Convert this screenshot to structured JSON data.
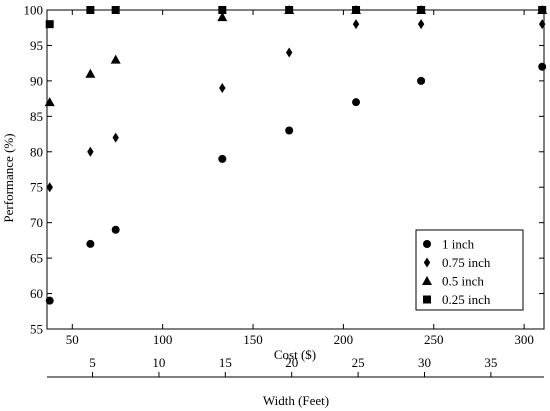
{
  "chart_data": {
    "type": "scatter",
    "xlabel": "Cost ($)",
    "ylabel": "Performance (%)",
    "xlim": [
      36,
      311
    ],
    "ylim": [
      55,
      100
    ],
    "xticks": [
      50,
      100,
      150,
      200,
      250,
      300
    ],
    "yticks": [
      55,
      60,
      65,
      70,
      75,
      80,
      85,
      90,
      95,
      100
    ],
    "secondary_x": {
      "label": "Width (Feet)",
      "lim": [
        1.57,
        39.0
      ],
      "ticks": [
        5,
        10,
        15,
        20,
        25,
        30,
        35
      ]
    },
    "grid": false,
    "legend_position": "lower-right",
    "series": [
      {
        "name": "1 inch",
        "marker": "circle",
        "x": [
          37.5,
          60,
          74,
          133,
          170,
          207,
          243,
          310
        ],
        "y": [
          59,
          67,
          69,
          79,
          83,
          87,
          90,
          92
        ]
      },
      {
        "name": "0.75 inch",
        "marker": "diamond",
        "x": [
          37.5,
          60,
          74,
          133,
          170,
          207,
          243,
          310
        ],
        "y": [
          75,
          80,
          82,
          89,
          94,
          98,
          98,
          98
        ]
      },
      {
        "name": "0.5 inch",
        "marker": "triangle",
        "x": [
          37.5,
          60,
          74,
          133,
          170,
          207,
          243,
          310
        ],
        "y": [
          87,
          91,
          93,
          99,
          100,
          100,
          100,
          100
        ]
      },
      {
        "name": "0.25 inch",
        "marker": "square",
        "x": [
          37.5,
          60,
          74,
          133,
          170,
          207,
          243,
          310
        ],
        "y": [
          98,
          100,
          100,
          100,
          100,
          100,
          100,
          100
        ]
      }
    ]
  }
}
